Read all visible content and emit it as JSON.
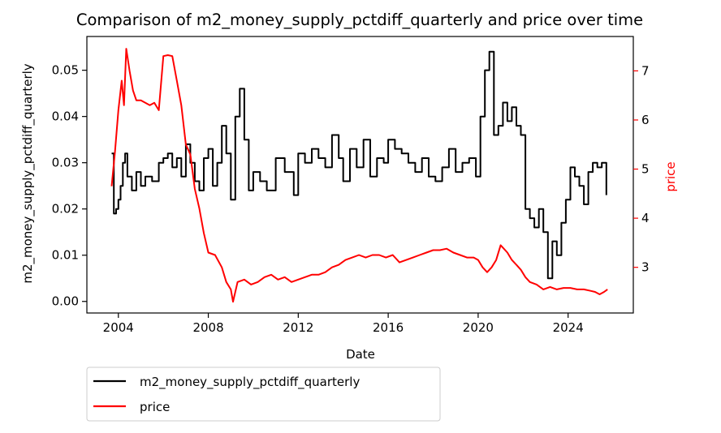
{
  "chart_data": {
    "type": "line",
    "title": "Comparison of m2_money_supply_pctdiff_quarterly and price over time",
    "xlabel": "Date",
    "ylabel_left": "m2_money_supply_pctdiff_quarterly",
    "ylabel_right": "price",
    "xlim": [
      2002.6,
      2026.9
    ],
    "ylim_left": [
      -0.0025,
      0.0573
    ],
    "ylim_right": [
      2.07,
      7.7
    ],
    "x_ticks": [
      2004,
      2008,
      2012,
      2016,
      2020,
      2024
    ],
    "y_left_ticks": [
      "0.00",
      "0.01",
      "0.02",
      "0.03",
      "0.04",
      "0.05"
    ],
    "y_right_ticks": [
      "3",
      "4",
      "5",
      "6",
      "7"
    ],
    "grid": false,
    "legend_position": "below-left",
    "colors": {
      "m2": "#000000",
      "price": "#ff0000"
    },
    "series": [
      {
        "name": "m2_money_supply_pctdiff_quarterly",
        "axis": "left",
        "x": [
          2003.7,
          2003.8,
          2003.9,
          2004.0,
          2004.1,
          2004.2,
          2004.3,
          2004.4,
          2004.6,
          2004.8,
          2005.0,
          2005.2,
          2005.5,
          2005.8,
          2006.0,
          2006.2,
          2006.4,
          2006.6,
          2006.8,
          2007.0,
          2007.2,
          2007.4,
          2007.6,
          2007.8,
          2008.0,
          2008.2,
          2008.4,
          2008.6,
          2008.8,
          2009.0,
          2009.2,
          2009.4,
          2009.6,
          2009.8,
          2010.0,
          2010.3,
          2010.6,
          2011.0,
          2011.4,
          2011.8,
          2012.0,
          2012.3,
          2012.6,
          2012.9,
          2013.2,
          2013.5,
          2013.8,
          2014.0,
          2014.3,
          2014.6,
          2014.9,
          2015.2,
          2015.5,
          2015.8,
          2016.0,
          2016.3,
          2016.6,
          2016.9,
          2017.2,
          2017.5,
          2017.8,
          2018.1,
          2018.4,
          2018.7,
          2019.0,
          2019.3,
          2019.6,
          2019.9,
          2020.1,
          2020.3,
          2020.5,
          2020.7,
          2020.9,
          2021.1,
          2021.3,
          2021.5,
          2021.7,
          2021.9,
          2022.1,
          2022.3,
          2022.5,
          2022.7,
          2022.9,
          2023.1,
          2023.3,
          2023.5,
          2023.7,
          2023.9,
          2024.1,
          2024.3,
          2024.5,
          2024.7,
          2024.9,
          2025.1,
          2025.3,
          2025.5,
          2025.7
        ],
        "values": [
          0.032,
          0.019,
          0.02,
          0.022,
          0.025,
          0.03,
          0.032,
          0.027,
          0.024,
          0.028,
          0.025,
          0.027,
          0.026,
          0.03,
          0.031,
          0.032,
          0.029,
          0.031,
          0.027,
          0.034,
          0.03,
          0.026,
          0.024,
          0.031,
          0.033,
          0.025,
          0.03,
          0.038,
          0.032,
          0.022,
          0.04,
          0.046,
          0.035,
          0.024,
          0.028,
          0.026,
          0.024,
          0.031,
          0.028,
          0.023,
          0.032,
          0.03,
          0.033,
          0.031,
          0.029,
          0.036,
          0.031,
          0.026,
          0.033,
          0.029,
          0.035,
          0.027,
          0.031,
          0.03,
          0.035,
          0.033,
          0.032,
          0.03,
          0.028,
          0.031,
          0.027,
          0.026,
          0.029,
          0.033,
          0.028,
          0.03,
          0.031,
          0.027,
          0.04,
          0.05,
          0.054,
          0.036,
          0.038,
          0.043,
          0.039,
          0.042,
          0.038,
          0.036,
          0.02,
          0.018,
          0.016,
          0.02,
          0.015,
          0.005,
          0.013,
          0.01,
          0.017,
          0.022,
          0.029,
          0.027,
          0.025,
          0.021,
          0.028,
          0.03,
          0.029,
          0.03,
          0.023
        ]
      },
      {
        "name": "price",
        "axis": "right",
        "x": [
          2003.7,
          2003.85,
          2004.0,
          2004.15,
          2004.25,
          2004.35,
          2004.5,
          2004.65,
          2004.8,
          2005.0,
          2005.2,
          2005.4,
          2005.6,
          2005.8,
          2006.0,
          2006.2,
          2006.4,
          2006.6,
          2006.8,
          2007.0,
          2007.2,
          2007.4,
          2007.6,
          2007.8,
          2008.0,
          2008.3,
          2008.6,
          2008.8,
          2009.0,
          2009.1,
          2009.3,
          2009.6,
          2009.9,
          2010.2,
          2010.5,
          2010.8,
          2011.1,
          2011.4,
          2011.7,
          2012.0,
          2012.3,
          2012.6,
          2012.9,
          2013.2,
          2013.5,
          2013.8,
          2014.1,
          2014.4,
          2014.7,
          2015.0,
          2015.3,
          2015.6,
          2015.9,
          2016.2,
          2016.5,
          2016.8,
          2017.1,
          2017.4,
          2017.7,
          2018.0,
          2018.3,
          2018.6,
          2018.9,
          2019.2,
          2019.5,
          2019.8,
          2020.0,
          2020.2,
          2020.4,
          2020.6,
          2020.8,
          2021.0,
          2021.1,
          2021.3,
          2021.5,
          2021.7,
          2021.9,
          2022.1,
          2022.3,
          2022.6,
          2022.9,
          2023.2,
          2023.5,
          2023.8,
          2024.1,
          2024.4,
          2024.7,
          2025.0,
          2025.2,
          2025.4,
          2025.6,
          2025.75
        ],
        "values": [
          4.65,
          5.35,
          6.2,
          6.8,
          6.3,
          7.45,
          7.0,
          6.6,
          6.4,
          6.4,
          6.35,
          6.3,
          6.35,
          6.2,
          7.3,
          7.32,
          7.3,
          6.8,
          6.3,
          5.5,
          5.3,
          4.6,
          4.2,
          3.7,
          3.3,
          3.25,
          3.0,
          2.7,
          2.55,
          2.3,
          2.7,
          2.75,
          2.65,
          2.7,
          2.8,
          2.85,
          2.75,
          2.8,
          2.7,
          2.75,
          2.8,
          2.85,
          2.85,
          2.9,
          3.0,
          3.05,
          3.15,
          3.2,
          3.25,
          3.2,
          3.25,
          3.25,
          3.2,
          3.25,
          3.1,
          3.15,
          3.2,
          3.25,
          3.3,
          3.35,
          3.35,
          3.38,
          3.3,
          3.25,
          3.2,
          3.2,
          3.15,
          3.0,
          2.9,
          3.0,
          3.15,
          3.45,
          3.4,
          3.3,
          3.15,
          3.05,
          2.95,
          2.8,
          2.7,
          2.65,
          2.55,
          2.6,
          2.55,
          2.58,
          2.58,
          2.55,
          2.55,
          2.52,
          2.5,
          2.45,
          2.5,
          2.55
        ]
      }
    ]
  }
}
